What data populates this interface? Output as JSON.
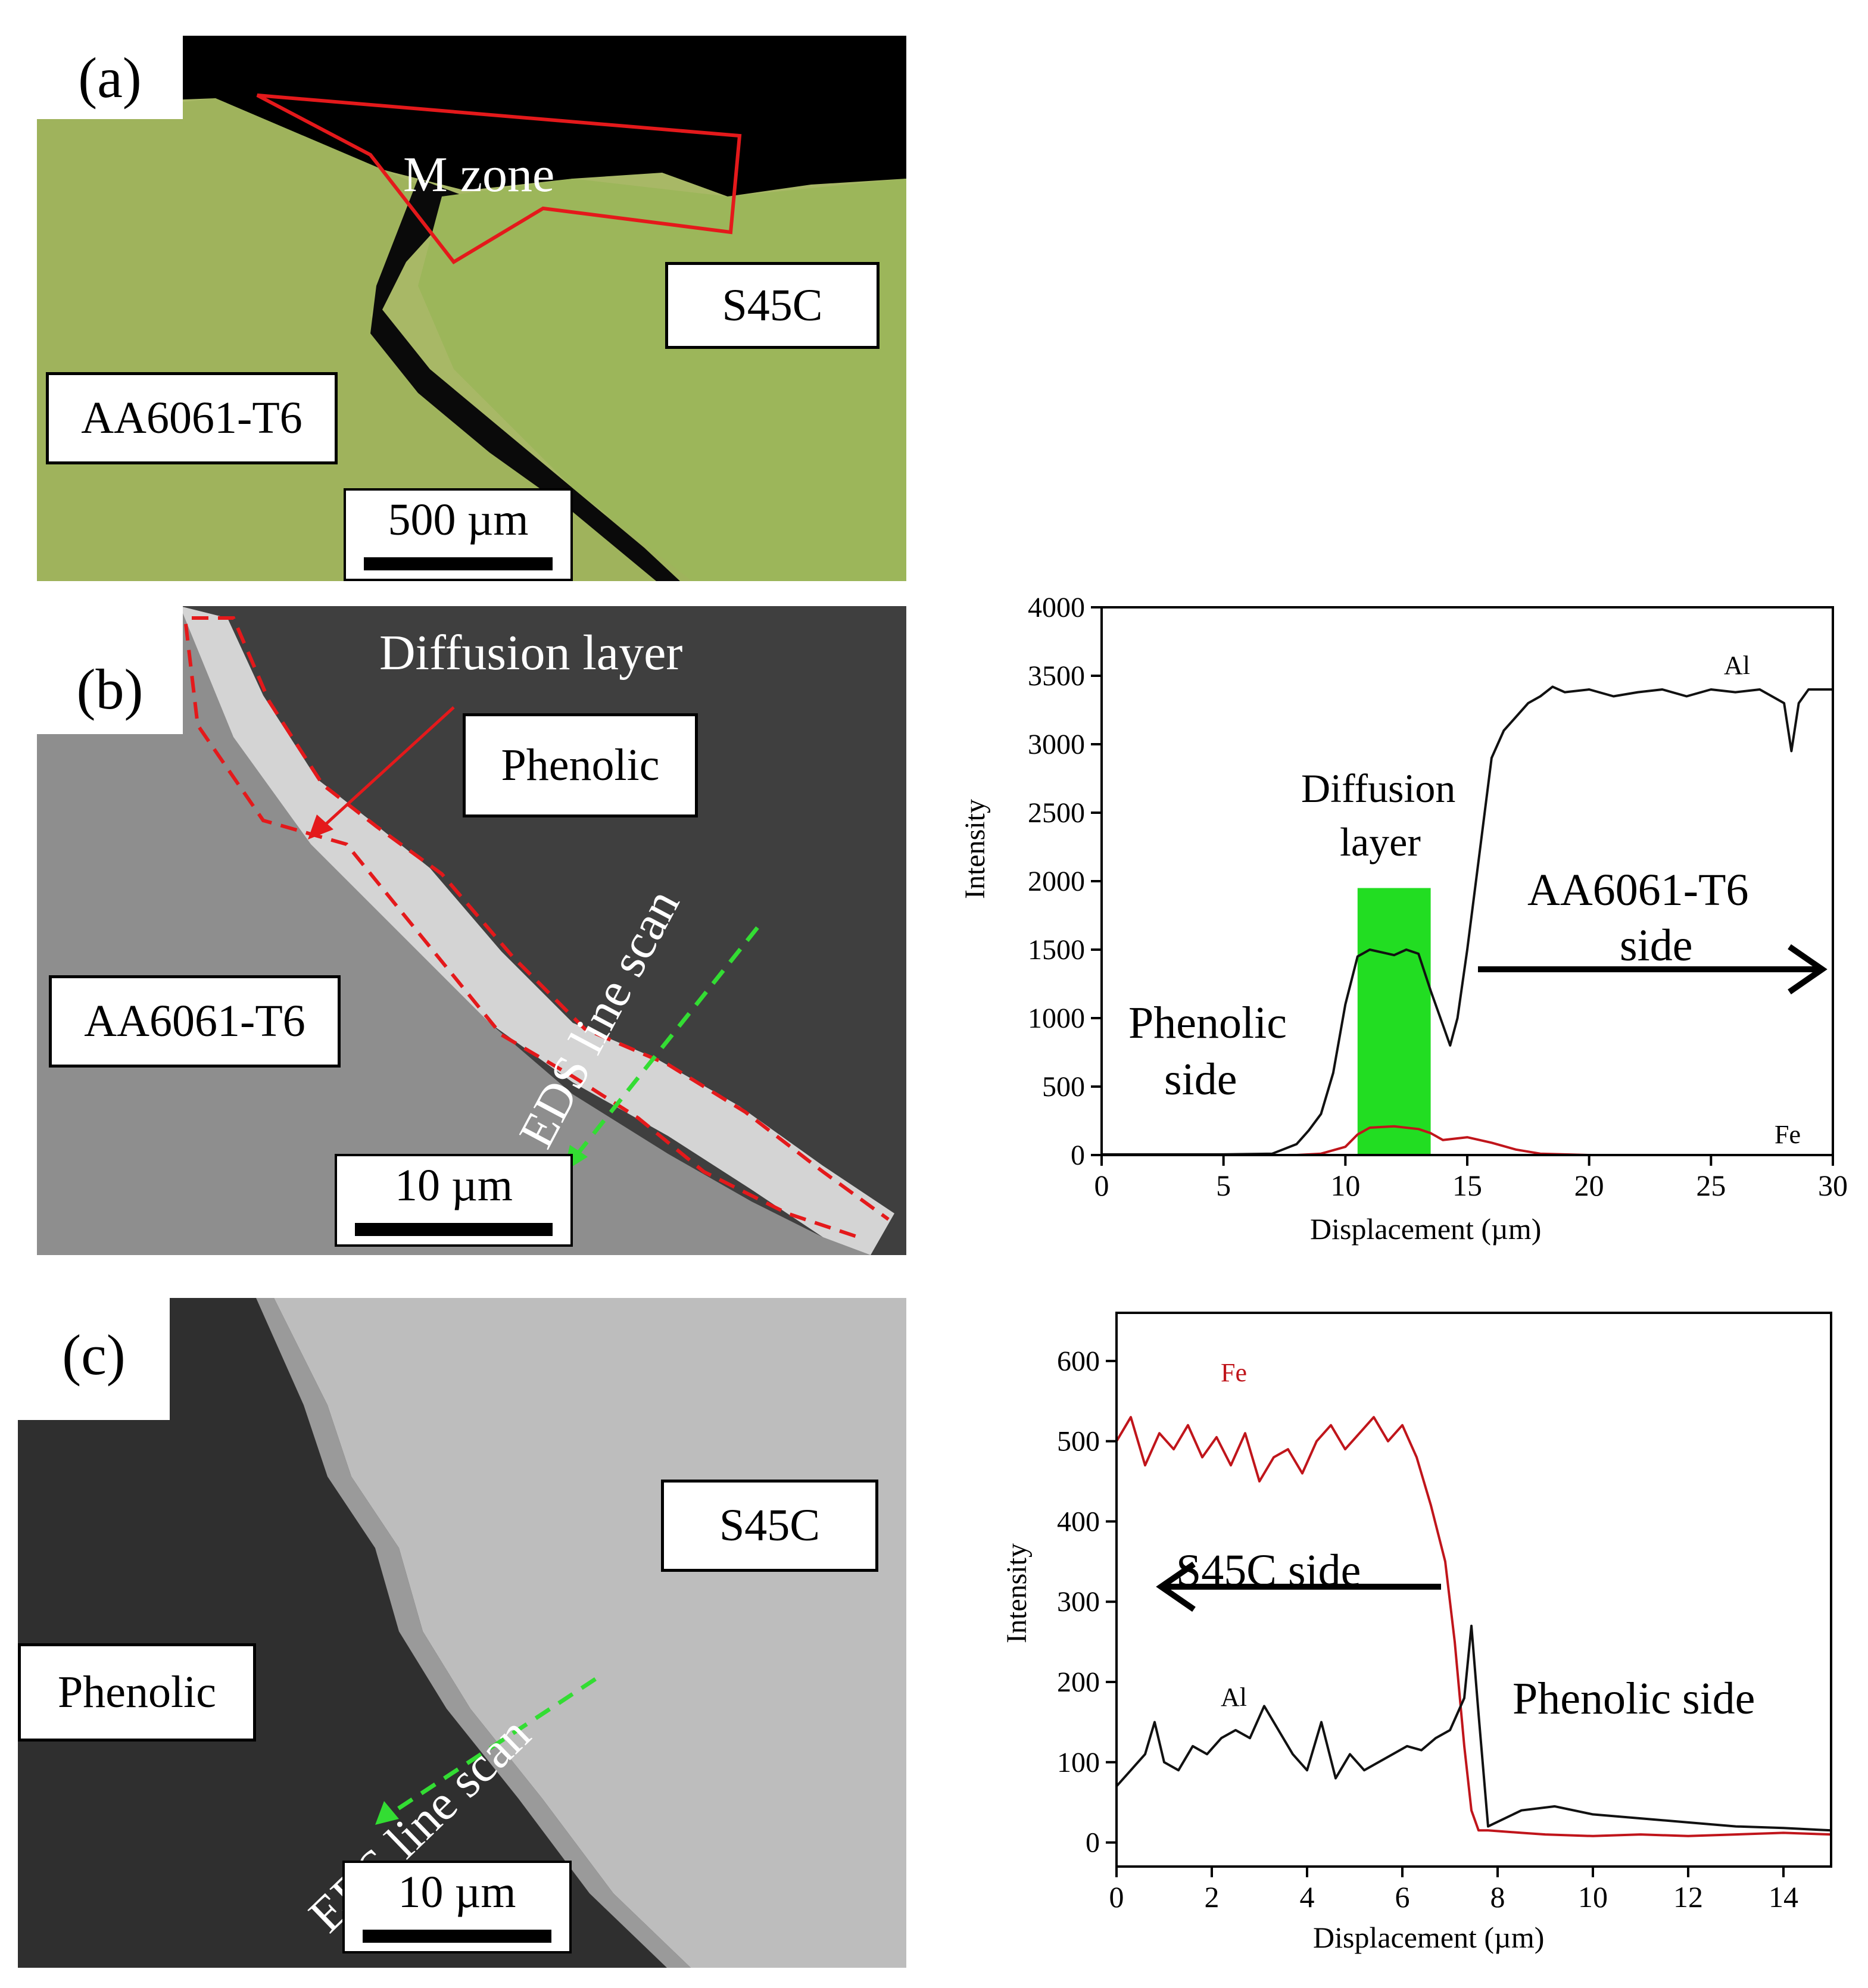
{
  "panels": {
    "a": {
      "letter": "(a)",
      "zone_label": "M zone",
      "label_right": "S45C",
      "label_left": "AA6061-T6",
      "scale": "500 µm"
    },
    "b": {
      "letter": "(b)",
      "diffusion_label": "Diffusion  layer",
      "label_top": "Phenolic",
      "label_left": "AA6061-T6",
      "eds": "EDS line scan",
      "scale": "10 µm"
    },
    "c": {
      "letter": "(c)",
      "label_right": "S45C",
      "label_left": "Phenolic",
      "eds": "EDS line scan",
      "scale": "10 µm"
    }
  },
  "colors": {
    "al": "#111111",
    "fe": "#c0151b",
    "diffusion": "#22dd22",
    "eds_arrow": "#33dd33",
    "zone_outline": "#e4191b"
  },
  "chart_data": [
    {
      "type": "line",
      "xlabel": "Displacement (µm)",
      "ylabel": "Intensity",
      "xlim": [
        0,
        30
      ],
      "ylim": [
        0,
        4000
      ],
      "xticks": [
        0,
        5,
        10,
        15,
        20,
        25,
        30
      ],
      "yticks": [
        0,
        500,
        1000,
        1500,
        2000,
        2500,
        3000,
        3500,
        4000
      ],
      "annotations": {
        "diffusion_line1": "Diffusion",
        "diffusion_line2": "layer",
        "phenolic_line1": "Phenolic",
        "phenolic_line2": "side",
        "aa_line1": "AA6061-T6",
        "aa_line2": "side"
      },
      "highlight_x": [
        10.5,
        13.5
      ],
      "series": [
        {
          "name": "Al",
          "x": [
            0,
            5,
            7,
            8,
            8.5,
            9,
            9.5,
            10,
            10.5,
            11,
            11.5,
            12,
            12.5,
            13,
            13.5,
            14,
            14.3,
            14.6,
            15,
            15.5,
            16,
            16.5,
            17,
            17.5,
            18,
            18.5,
            19,
            20,
            21,
            22,
            23,
            24,
            25,
            26,
            27,
            27.5,
            28,
            28.3,
            28.6,
            29,
            30
          ],
          "y": [
            5,
            5,
            10,
            80,
            180,
            300,
            600,
            1100,
            1450,
            1500,
            1480,
            1460,
            1500,
            1470,
            1200,
            950,
            800,
            1000,
            1500,
            2200,
            2900,
            3100,
            3200,
            3300,
            3350,
            3420,
            3380,
            3400,
            3350,
            3380,
            3400,
            3350,
            3400,
            3380,
            3400,
            3350,
            3300,
            2950,
            3300,
            3400,
            3400
          ]
        },
        {
          "name": "Fe",
          "x": [
            0,
            8,
            9,
            10,
            10.5,
            11,
            12,
            13,
            13.5,
            14,
            15,
            16,
            17,
            18,
            20,
            30
          ],
          "y": [
            0,
            0,
            10,
            60,
            150,
            200,
            210,
            190,
            160,
            110,
            130,
            90,
            40,
            10,
            0,
            0
          ]
        }
      ]
    },
    {
      "type": "line",
      "xlabel": "Displacement (µm)",
      "ylabel": "Intensity",
      "xlim": [
        0,
        15
      ],
      "ylim": [
        -30,
        660
      ],
      "xticks": [
        0,
        2,
        4,
        6,
        8,
        10,
        12,
        14
      ],
      "yticks": [
        0,
        100,
        200,
        300,
        400,
        500,
        600
      ],
      "annotations": {
        "s45c": "S45C side",
        "phenolic": "Phenolic  side"
      },
      "series": [
        {
          "name": "Fe",
          "x": [
            0,
            0.3,
            0.6,
            0.9,
            1.2,
            1.5,
            1.8,
            2.1,
            2.4,
            2.7,
            3.0,
            3.3,
            3.6,
            3.9,
            4.2,
            4.5,
            4.8,
            5.1,
            5.4,
            5.7,
            6.0,
            6.3,
            6.6,
            6.9,
            7.1,
            7.3,
            7.45,
            7.6,
            7.8,
            8.5,
            9,
            10,
            11,
            12,
            13,
            14,
            15
          ],
          "y": [
            500,
            530,
            470,
            510,
            490,
            520,
            480,
            505,
            470,
            510,
            450,
            480,
            490,
            460,
            500,
            520,
            490,
            510,
            530,
            500,
            520,
            480,
            420,
            350,
            250,
            120,
            40,
            15,
            15,
            12,
            10,
            8,
            10,
            8,
            10,
            12,
            10
          ]
        },
        {
          "name": "Al",
          "x": [
            0,
            0.3,
            0.6,
            0.8,
            1.0,
            1.3,
            1.6,
            1.9,
            2.2,
            2.5,
            2.8,
            3.1,
            3.4,
            3.7,
            4.0,
            4.3,
            4.6,
            4.9,
            5.2,
            5.5,
            5.8,
            6.1,
            6.4,
            6.7,
            7.0,
            7.3,
            7.45,
            7.6,
            7.8,
            8.5,
            9.2,
            10,
            11,
            12,
            13,
            14,
            15
          ],
          "y": [
            70,
            90,
            110,
            150,
            100,
            90,
            120,
            110,
            130,
            140,
            130,
            170,
            140,
            110,
            90,
            150,
            80,
            110,
            90,
            100,
            110,
            120,
            115,
            130,
            140,
            180,
            270,
            160,
            20,
            40,
            45,
            35,
            30,
            25,
            20,
            18,
            15
          ]
        }
      ]
    }
  ]
}
